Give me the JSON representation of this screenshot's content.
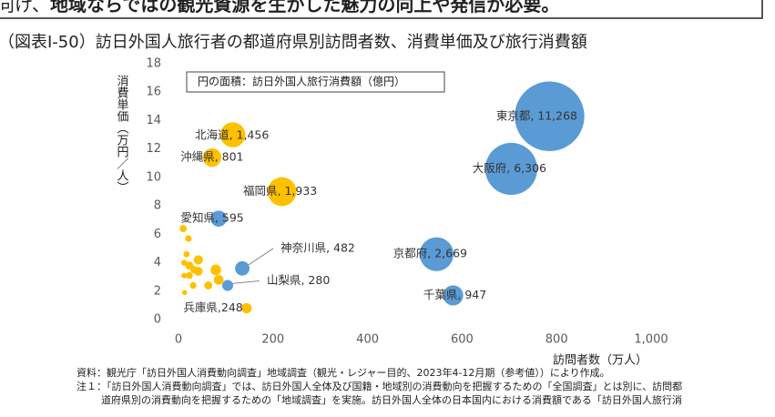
{
  "header": {
    "text_normal": "向け、",
    "text_bold": "地域ならではの観光資源を生かした魅力の向上や発信が必要。"
  },
  "caption": "（図表Ⅰ-50）訪日外国人旅行者の都道府県別訪問者数、消費単価及び旅行消費額",
  "chart_data": {
    "type": "bubble",
    "legend_title": "円の面積：訪日外国人旅行消費額（億円）",
    "xlabel": "訪問者数（万人）",
    "ylabel": "消費単価（万円／人）",
    "xlim": [
      0,
      1000
    ],
    "xticks": [
      0,
      200,
      400,
      600,
      800,
      {
        "value": 1000,
        "label": "1,000"
      }
    ],
    "ylim": [
      0,
      18
    ],
    "yticks": [
      0,
      2,
      4,
      6,
      8,
      10,
      12,
      14,
      16,
      18
    ],
    "labels": [
      "東京都, 11,268",
      "大阪府, 6,306",
      "京都府, 2,669",
      "千葉県, 947",
      "福岡県, 1,933",
      "北海道, 1,456",
      "沖縄県, 801",
      "愛知県, 595",
      "神奈川県, 482",
      "山梨県, 280",
      "兵庫県,248",
      null,
      null,
      null,
      null,
      null,
      null,
      null,
      null,
      null,
      null,
      null,
      null,
      null,
      null,
      null
    ],
    "x": [
      785,
      704,
      546,
      581,
      219,
      115,
      71,
      85,
      135,
      104,
      144,
      10,
      21,
      17,
      12,
      23,
      42,
      33,
      23,
      12,
      42,
      79,
      85,
      31,
      13,
      63
    ],
    "y": [
      14.3,
      10.6,
      4.6,
      1.7,
      9.0,
      13.0,
      11.4,
      7.1,
      3.6,
      2.4,
      0.8,
      6.4,
      5.7,
      4.6,
      4.0,
      3.8,
      4.2,
      3.5,
      3.1,
      3.1,
      3.4,
      3.5,
      2.8,
      2.4,
      1.9,
      2.4
    ],
    "sizes": [
      11268,
      6306,
      2669,
      947,
      1933,
      1456,
      801,
      595,
      482,
      280,
      248,
      120,
      100,
      90,
      80,
      150,
      200,
      130,
      110,
      70,
      180,
      260,
      220,
      100,
      60,
      150
    ],
    "colors": [
      "#5b9bd5",
      "#5b9bd5",
      "#5b9bd5",
      "#5b9bd5",
      "#ffc000",
      "#ffc000",
      "#ffc000",
      "#5b9bd5",
      "#5b9bd5",
      "#5b9bd5",
      "#ffc000",
      "#ffc000",
      "#ffc000",
      "#ffc000",
      "#ffc000",
      "#ffc000",
      "#ffc000",
      "#ffc000",
      "#ffc000",
      "#ffc000",
      "#ffc000",
      "#ffc000",
      "#ffc000",
      "#ffc000",
      "#ffc000",
      "#ffc000"
    ]
  },
  "notes": [
    "資料：観光庁「訪日外国人消費動向調査」地域調査（観光・レジャー目的、2023年4-12月期（参考値））により作成。",
    "注１：「訪日外国人消費動向調査」では、訪日外国人全体及び国籍・地域別の消費動向を把握するための「全国調査」とは別に、訪問都",
    "道府県別の消費動向を把握するための「地域調査」を実施。訪日外国人全体の日本国内における消費額である「訪日外国人旅行消"
  ]
}
